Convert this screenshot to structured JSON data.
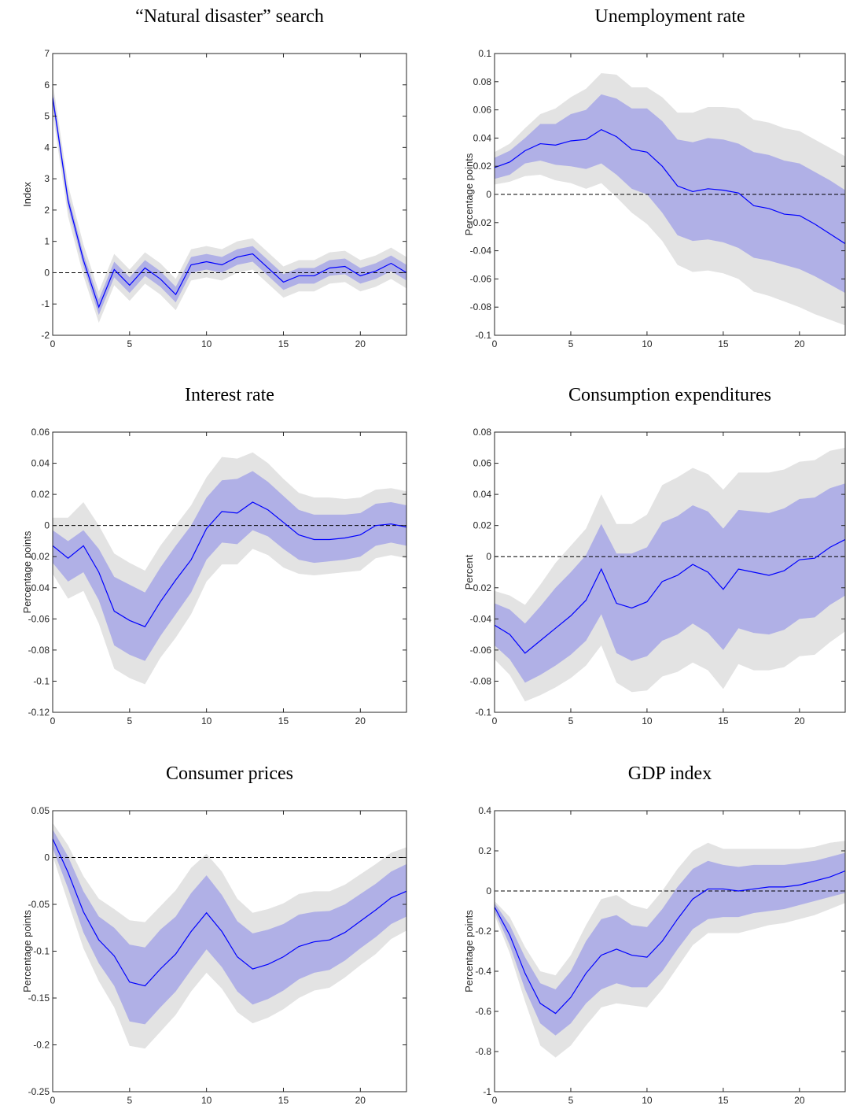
{
  "chart_data": [
    {
      "type": "line",
      "title": "“Natural disaster” search",
      "ylabel": "Index",
      "x": [
        0,
        1,
        2,
        3,
        4,
        5,
        6,
        7,
        8,
        9,
        10,
        11,
        12,
        13,
        14,
        15,
        16,
        17,
        18,
        19,
        20,
        21,
        22,
        23
      ],
      "xlim": [
        0,
        23
      ],
      "xticks": [
        0,
        5,
        10,
        15,
        20
      ],
      "ylim": [
        -2,
        7
      ],
      "yticks": [
        -2,
        -1,
        0,
        1,
        2,
        3,
        4,
        5,
        6,
        7
      ],
      "reference_line": 0,
      "color": "#0000ff",
      "values": [
        5.6,
        2.3,
        0.4,
        -1.1,
        0.1,
        -0.4,
        0.15,
        -0.2,
        -0.7,
        0.25,
        0.35,
        0.25,
        0.5,
        0.6,
        0.15,
        -0.3,
        -0.1,
        -0.1,
        0.15,
        0.2,
        -0.1,
        0.05,
        0.3,
        0.0
      ],
      "bands": [
        {
          "color": "#e3e3e3",
          "lower": [
            5.1,
            1.8,
            -0.1,
            -1.6,
            -0.4,
            -0.9,
            -0.35,
            -0.7,
            -1.2,
            -0.25,
            -0.15,
            -0.25,
            0.0,
            0.1,
            -0.35,
            -0.8,
            -0.6,
            -0.6,
            -0.35,
            -0.3,
            -0.6,
            -0.45,
            -0.2,
            -0.5
          ],
          "upper": [
            6.1,
            2.8,
            0.9,
            -0.6,
            0.6,
            0.1,
            0.65,
            0.3,
            -0.2,
            0.75,
            0.85,
            0.75,
            1.0,
            1.1,
            0.65,
            0.2,
            0.4,
            0.4,
            0.65,
            0.7,
            0.4,
            0.55,
            0.8,
            0.5
          ]
        },
        {
          "color": "#b0b0e6",
          "lower": [
            5.4,
            2.1,
            0.2,
            -1.35,
            -0.15,
            -0.65,
            -0.1,
            -0.45,
            -0.95,
            0.0,
            0.1,
            0.0,
            0.25,
            0.35,
            -0.1,
            -0.55,
            -0.35,
            -0.35,
            -0.1,
            -0.05,
            -0.35,
            -0.2,
            0.05,
            -0.25
          ],
          "upper": [
            5.8,
            2.5,
            0.6,
            -0.85,
            0.35,
            -0.15,
            0.4,
            0.05,
            -0.45,
            0.5,
            0.6,
            0.5,
            0.75,
            0.85,
            0.4,
            -0.05,
            0.15,
            0.15,
            0.4,
            0.45,
            0.15,
            0.3,
            0.55,
            0.25
          ]
        }
      ]
    },
    {
      "type": "line",
      "title": "Unemployment rate",
      "ylabel": "Percentage points",
      "x": [
        0,
        1,
        2,
        3,
        4,
        5,
        6,
        7,
        8,
        9,
        10,
        11,
        12,
        13,
        14,
        15,
        16,
        17,
        18,
        19,
        20,
        21,
        22,
        23
      ],
      "xlim": [
        0,
        23
      ],
      "xticks": [
        0,
        5,
        10,
        15,
        20
      ],
      "ylim": [
        -0.1,
        0.1
      ],
      "yticks": [
        -0.1,
        -0.08,
        -0.06,
        -0.04,
        -0.02,
        0,
        0.02,
        0.04,
        0.06,
        0.08,
        0.1
      ],
      "reference_line": 0,
      "color": "#0000ff",
      "values": [
        0.019,
        0.023,
        0.031,
        0.036,
        0.035,
        0.038,
        0.039,
        0.046,
        0.041,
        0.032,
        0.03,
        0.02,
        0.006,
        0.002,
        0.004,
        0.003,
        0.001,
        -0.008,
        -0.01,
        -0.014,
        -0.015,
        -0.021,
        -0.028,
        -0.035
      ],
      "bands": [
        {
          "color": "#e3e3e3",
          "lower": [
            0.007,
            0.009,
            0.013,
            0.014,
            0.01,
            0.008,
            0.004,
            0.008,
            -0.002,
            -0.013,
            -0.021,
            -0.033,
            -0.05,
            -0.055,
            -0.054,
            -0.056,
            -0.06,
            -0.069,
            -0.072,
            -0.076,
            -0.08,
            -0.085,
            -0.089,
            -0.093
          ],
          "upper": [
            0.03,
            0.036,
            0.047,
            0.057,
            0.061,
            0.069,
            0.075,
            0.086,
            0.085,
            0.076,
            0.076,
            0.069,
            0.058,
            0.058,
            0.062,
            0.062,
            0.061,
            0.053,
            0.051,
            0.047,
            0.045,
            0.039,
            0.033,
            0.027
          ]
        },
        {
          "color": "#b0b0e6",
          "lower": [
            0.011,
            0.014,
            0.022,
            0.024,
            0.021,
            0.02,
            0.018,
            0.022,
            0.014,
            0.004,
            0.0,
            -0.013,
            -0.029,
            -0.033,
            -0.032,
            -0.034,
            -0.038,
            -0.045,
            -0.047,
            -0.05,
            -0.053,
            -0.058,
            -0.064,
            -0.07
          ],
          "upper": [
            0.026,
            0.031,
            0.04,
            0.05,
            0.05,
            0.057,
            0.06,
            0.071,
            0.068,
            0.061,
            0.061,
            0.052,
            0.039,
            0.037,
            0.04,
            0.039,
            0.036,
            0.03,
            0.028,
            0.024,
            0.022,
            0.016,
            0.01,
            0.003
          ]
        }
      ]
    },
    {
      "type": "line",
      "title": "Interest rate",
      "ylabel": "Percentage points",
      "x": [
        0,
        1,
        2,
        3,
        4,
        5,
        6,
        7,
        8,
        9,
        10,
        11,
        12,
        13,
        14,
        15,
        16,
        17,
        18,
        19,
        20,
        21,
        22,
        23
      ],
      "xlim": [
        0,
        23
      ],
      "xticks": [
        0,
        5,
        10,
        15,
        20
      ],
      "ylim": [
        -0.12,
        0.06
      ],
      "yticks": [
        -0.12,
        -0.1,
        -0.08,
        -0.06,
        -0.04,
        -0.02,
        0,
        0.02,
        0.04,
        0.06
      ],
      "reference_line": 0,
      "color": "#0000ff",
      "values": [
        -0.013,
        -0.021,
        -0.013,
        -0.03,
        -0.055,
        -0.061,
        -0.065,
        -0.049,
        -0.035,
        -0.022,
        -0.002,
        0.009,
        0.008,
        0.015,
        0.01,
        0.002,
        -0.006,
        -0.009,
        -0.009,
        -0.008,
        -0.006,
        0.0,
        0.001,
        -0.001
      ],
      "bands": [
        {
          "color": "#e3e3e3",
          "lower": [
            -0.031,
            -0.047,
            -0.042,
            -0.063,
            -0.092,
            -0.098,
            -0.102,
            -0.085,
            -0.072,
            -0.057,
            -0.036,
            -0.025,
            -0.025,
            -0.015,
            -0.019,
            -0.027,
            -0.031,
            -0.032,
            -0.031,
            -0.03,
            -0.029,
            -0.021,
            -0.019,
            -0.021
          ],
          "upper": [
            0.005,
            0.005,
            0.015,
            0.0,
            -0.018,
            -0.024,
            -0.029,
            -0.013,
            0.0,
            0.013,
            0.031,
            0.044,
            0.043,
            0.047,
            0.04,
            0.03,
            0.021,
            0.018,
            0.018,
            0.017,
            0.018,
            0.023,
            0.024,
            0.022
          ]
        },
        {
          "color": "#b0b0e6",
          "lower": [
            -0.024,
            -0.036,
            -0.03,
            -0.048,
            -0.077,
            -0.083,
            -0.087,
            -0.071,
            -0.057,
            -0.043,
            -0.022,
            -0.011,
            -0.012,
            -0.003,
            -0.007,
            -0.015,
            -0.022,
            -0.024,
            -0.023,
            -0.022,
            -0.02,
            -0.013,
            -0.011,
            -0.013
          ],
          "upper": [
            -0.003,
            -0.01,
            -0.003,
            -0.015,
            -0.033,
            -0.038,
            -0.043,
            -0.027,
            -0.013,
            0.0,
            0.018,
            0.029,
            0.03,
            0.035,
            0.028,
            0.019,
            0.01,
            0.007,
            0.007,
            0.007,
            0.008,
            0.014,
            0.015,
            0.013
          ]
        }
      ]
    },
    {
      "type": "line",
      "title": "Consumption expenditures",
      "ylabel": "Percent",
      "x": [
        0,
        1,
        2,
        3,
        4,
        5,
        6,
        7,
        8,
        9,
        10,
        11,
        12,
        13,
        14,
        15,
        16,
        17,
        18,
        19,
        20,
        21,
        22,
        23
      ],
      "xlim": [
        0,
        23
      ],
      "xticks": [
        0,
        5,
        10,
        15,
        20
      ],
      "ylim": [
        -0.1,
        0.08
      ],
      "yticks": [
        -0.1,
        -0.08,
        -0.06,
        -0.04,
        -0.02,
        0,
        0.02,
        0.04,
        0.06,
        0.08
      ],
      "reference_line": 0,
      "color": "#0000ff",
      "values": [
        -0.044,
        -0.05,
        -0.062,
        -0.054,
        -0.046,
        -0.038,
        -0.028,
        -0.008,
        -0.03,
        -0.033,
        -0.029,
        -0.016,
        -0.012,
        -0.005,
        -0.01,
        -0.021,
        -0.008,
        -0.01,
        -0.012,
        -0.009,
        -0.002,
        -0.001,
        0.006,
        0.011
      ],
      "bands": [
        {
          "color": "#e3e3e3",
          "lower": [
            -0.066,
            -0.076,
            -0.093,
            -0.089,
            -0.084,
            -0.078,
            -0.07,
            -0.057,
            -0.081,
            -0.087,
            -0.086,
            -0.077,
            -0.074,
            -0.068,
            -0.073,
            -0.085,
            -0.069,
            -0.073,
            -0.073,
            -0.071,
            -0.064,
            -0.063,
            -0.055,
            -0.048
          ],
          "upper": [
            -0.022,
            -0.025,
            -0.031,
            -0.018,
            -0.004,
            0.007,
            0.018,
            0.04,
            0.021,
            0.021,
            0.027,
            0.046,
            0.051,
            0.057,
            0.053,
            0.043,
            0.054,
            0.054,
            0.054,
            0.056,
            0.061,
            0.062,
            0.068,
            0.07
          ]
        },
        {
          "color": "#b0b0e6",
          "lower": [
            -0.057,
            -0.066,
            -0.081,
            -0.076,
            -0.07,
            -0.063,
            -0.054,
            -0.037,
            -0.062,
            -0.067,
            -0.064,
            -0.054,
            -0.05,
            -0.043,
            -0.049,
            -0.06,
            -0.046,
            -0.049,
            -0.05,
            -0.047,
            -0.04,
            -0.039,
            -0.031,
            -0.025
          ],
          "upper": [
            -0.03,
            -0.034,
            -0.043,
            -0.032,
            -0.02,
            -0.01,
            0.001,
            0.021,
            0.002,
            0.002,
            0.006,
            0.022,
            0.026,
            0.033,
            0.029,
            0.018,
            0.03,
            0.029,
            0.028,
            0.031,
            0.037,
            0.038,
            0.044,
            0.047
          ]
        }
      ]
    },
    {
      "type": "line",
      "title": "Consumer prices",
      "ylabel": "Percentage points",
      "x": [
        0,
        1,
        2,
        3,
        4,
        5,
        6,
        7,
        8,
        9,
        10,
        11,
        12,
        13,
        14,
        15,
        16,
        17,
        18,
        19,
        20,
        21,
        22,
        23
      ],
      "xlim": [
        0,
        23
      ],
      "xticks": [
        0,
        5,
        10,
        15,
        20
      ],
      "ylim": [
        -0.25,
        0.05
      ],
      "yticks": [
        -0.25,
        -0.2,
        -0.15,
        -0.1,
        -0.05,
        0,
        0.05
      ],
      "reference_line": 0,
      "color": "#0000ff",
      "values": [
        0.02,
        -0.016,
        -0.058,
        -0.088,
        -0.105,
        -0.133,
        -0.137,
        -0.119,
        -0.103,
        -0.079,
        -0.059,
        -0.079,
        -0.106,
        -0.119,
        -0.114,
        -0.106,
        -0.095,
        -0.09,
        -0.088,
        -0.08,
        -0.068,
        -0.056,
        -0.043,
        -0.036
      ],
      "bands": [
        {
          "color": "#e3e3e3",
          "lower": [
            0.002,
            -0.048,
            -0.097,
            -0.132,
            -0.16,
            -0.201,
            -0.204,
            -0.186,
            -0.168,
            -0.143,
            -0.123,
            -0.14,
            -0.165,
            -0.177,
            -0.171,
            -0.162,
            -0.15,
            -0.142,
            -0.139,
            -0.128,
            -0.115,
            -0.103,
            -0.087,
            -0.078
          ],
          "upper": [
            0.037,
            0.013,
            -0.02,
            -0.044,
            -0.055,
            -0.067,
            -0.069,
            -0.052,
            -0.035,
            -0.011,
            0.004,
            -0.015,
            -0.044,
            -0.059,
            -0.055,
            -0.049,
            -0.039,
            -0.036,
            -0.036,
            -0.029,
            -0.018,
            -0.007,
            0.005,
            0.011
          ]
        },
        {
          "color": "#b0b0e6",
          "lower": [
            0.01,
            -0.033,
            -0.08,
            -0.113,
            -0.137,
            -0.175,
            -0.178,
            -0.16,
            -0.143,
            -0.12,
            -0.098,
            -0.117,
            -0.143,
            -0.157,
            -0.151,
            -0.142,
            -0.13,
            -0.123,
            -0.12,
            -0.11,
            -0.097,
            -0.085,
            -0.071,
            -0.063
          ],
          "upper": [
            0.03,
            0.001,
            -0.036,
            -0.063,
            -0.075,
            -0.093,
            -0.096,
            -0.077,
            -0.063,
            -0.038,
            -0.019,
            -0.04,
            -0.068,
            -0.081,
            -0.077,
            -0.071,
            -0.061,
            -0.058,
            -0.057,
            -0.05,
            -0.039,
            -0.028,
            -0.015,
            -0.007
          ]
        }
      ]
    },
    {
      "type": "line",
      "title": "GDP index",
      "ylabel": "Percentage points",
      "x": [
        0,
        1,
        2,
        3,
        4,
        5,
        6,
        7,
        8,
        9,
        10,
        11,
        12,
        13,
        14,
        15,
        16,
        17,
        18,
        19,
        20,
        21,
        22,
        23
      ],
      "xlim": [
        0,
        23
      ],
      "xticks": [
        0,
        5,
        10,
        15,
        20
      ],
      "ylim": [
        -1,
        0.4
      ],
      "yticks": [
        -1,
        -0.8,
        -0.6,
        -0.4,
        -0.2,
        0,
        0.2,
        0.4
      ],
      "reference_line": 0,
      "color": "#0000ff",
      "values": [
        -0.08,
        -0.22,
        -0.41,
        -0.56,
        -0.61,
        -0.53,
        -0.41,
        -0.32,
        -0.29,
        -0.32,
        -0.33,
        -0.25,
        -0.14,
        -0.04,
        0.01,
        0.01,
        0.0,
        0.01,
        0.02,
        0.02,
        0.03,
        0.05,
        0.07,
        0.1
      ],
      "bands": [
        {
          "color": "#e3e3e3",
          "lower": [
            -0.12,
            -0.31,
            -0.55,
            -0.77,
            -0.83,
            -0.77,
            -0.67,
            -0.58,
            -0.56,
            -0.57,
            -0.58,
            -0.49,
            -0.38,
            -0.27,
            -0.21,
            -0.21,
            -0.21,
            -0.19,
            -0.17,
            -0.16,
            -0.14,
            -0.12,
            -0.09,
            -0.06
          ],
          "upper": [
            -0.05,
            -0.13,
            -0.28,
            -0.4,
            -0.42,
            -0.32,
            -0.17,
            -0.04,
            -0.02,
            -0.07,
            -0.09,
            0.0,
            0.11,
            0.2,
            0.24,
            0.21,
            0.21,
            0.21,
            0.21,
            0.21,
            0.21,
            0.22,
            0.24,
            0.25
          ]
        },
        {
          "color": "#b0b0e6",
          "lower": [
            -0.1,
            -0.27,
            -0.49,
            -0.66,
            -0.72,
            -0.66,
            -0.56,
            -0.49,
            -0.46,
            -0.48,
            -0.48,
            -0.4,
            -0.29,
            -0.19,
            -0.14,
            -0.13,
            -0.13,
            -0.11,
            -0.1,
            -0.09,
            -0.07,
            -0.05,
            -0.03,
            -0.01
          ],
          "upper": [
            -0.06,
            -0.17,
            -0.33,
            -0.46,
            -0.49,
            -0.4,
            -0.25,
            -0.14,
            -0.12,
            -0.17,
            -0.18,
            -0.09,
            0.02,
            0.11,
            0.15,
            0.13,
            0.12,
            0.13,
            0.13,
            0.13,
            0.14,
            0.15,
            0.17,
            0.19
          ]
        }
      ]
    }
  ]
}
